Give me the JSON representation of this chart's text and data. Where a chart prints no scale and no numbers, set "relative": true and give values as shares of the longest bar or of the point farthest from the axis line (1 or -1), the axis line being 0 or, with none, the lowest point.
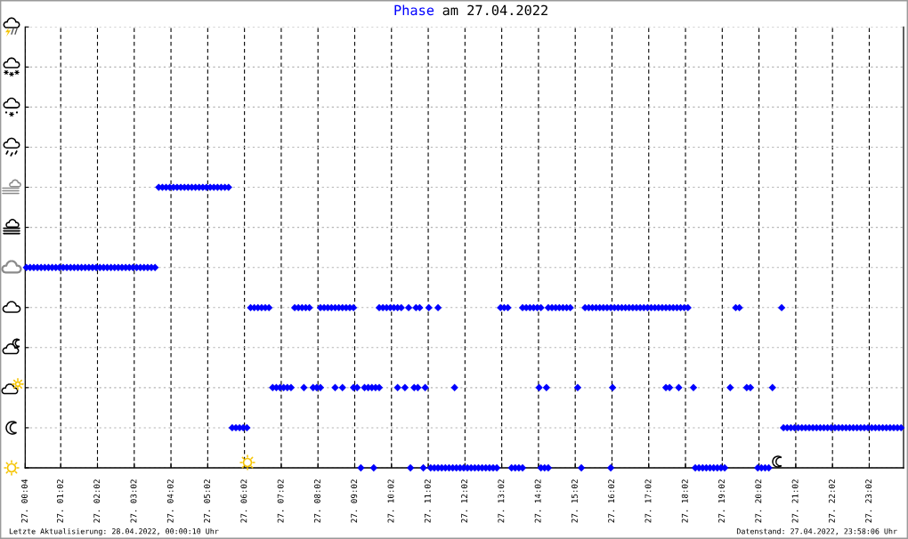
{
  "chart_data": {
    "type": "scatter",
    "title": "Phase am 27.04.2022",
    "annotations": [
      "Letzte Aktualisierung: 28.04.2022, 00:00:10 Uhr",
      "Datenstand: 27.04.2022, 23:58:06 Uhr"
    ],
    "relative": true,
    "marker": "diamond",
    "grid": true,
    "tick_labels": "x",
    "color": "#0000ff",
    "xlim": [
      "2022-04-27T00:04",
      "2022-04-27T23:58"
    ],
    "xticks": [
      {
        "value": "2022-04-27T00:04",
        "label": "27. 00:04"
      },
      {
        "value": "2022-04-27T01:02",
        "label": "27. 01:02"
      },
      {
        "value": "2022-04-27T02:02",
        "label": "27. 02:02"
      },
      {
        "value": "2022-04-27T03:02",
        "label": "27. 03:02"
      },
      {
        "value": "2022-04-27T04:02",
        "label": "27. 04:02"
      },
      {
        "value": "2022-04-27T05:02",
        "label": "27. 05:02"
      },
      {
        "value": "2022-04-27T06:02",
        "label": "27. 06:02"
      },
      {
        "value": "2022-04-27T07:02",
        "label": "27. 07:02"
      },
      {
        "value": "2022-04-27T08:02",
        "label": "27. 08:02"
      },
      {
        "value": "2022-04-27T09:02",
        "label": "27. 09:02"
      },
      {
        "value": "2022-04-27T10:02",
        "label": "27. 10:02"
      },
      {
        "value": "2022-04-27T11:02",
        "label": "27. 11:02"
      },
      {
        "value": "2022-04-27T12:02",
        "label": "27. 12:02"
      },
      {
        "value": "2022-04-27T13:02",
        "label": "27. 13:02"
      },
      {
        "value": "2022-04-27T14:02",
        "label": "27. 14:02"
      },
      {
        "value": "2022-04-27T15:02",
        "label": "27. 15:02"
      },
      {
        "value": "2022-04-27T16:02",
        "label": "27. 16:02"
      },
      {
        "value": "2022-04-27T17:02",
        "label": "27. 17:02"
      },
      {
        "value": "2022-04-27T18:02",
        "label": "27. 18:02"
      },
      {
        "value": "2022-04-27T19:02",
        "label": "27. 19:02"
      },
      {
        "value": "2022-04-27T20:02",
        "label": "27. 20:02"
      },
      {
        "value": "2022-04-27T21:02",
        "label": "27. 21:02"
      },
      {
        "value": "2022-04-27T22:02",
        "label": "27. 22:02"
      },
      {
        "value": "2022-04-27T23:02",
        "label": "27. 23:02"
      }
    ],
    "x": [
      "2022-04-27T00:06",
      "2022-04-27T00:12",
      "2022-04-27T00:18",
      "2022-04-27T00:24",
      "2022-04-27T00:30",
      "2022-04-27T00:36",
      "2022-04-27T00:42",
      "2022-04-27T00:48",
      "2022-04-27T00:54",
      "2022-04-27T01:00",
      "2022-04-27T01:06",
      "2022-04-27T01:12",
      "2022-04-27T01:18",
      "2022-04-27T01:24",
      "2022-04-27T01:30",
      "2022-04-27T01:36",
      "2022-04-27T01:42",
      "2022-04-27T01:48",
      "2022-04-27T01:54",
      "2022-04-27T02:00",
      "2022-04-27T02:06",
      "2022-04-27T02:12",
      "2022-04-27T02:18",
      "2022-04-27T02:24",
      "2022-04-27T02:30",
      "2022-04-27T02:36",
      "2022-04-27T02:42",
      "2022-04-27T02:48",
      "2022-04-27T02:54",
      "2022-04-27T03:00",
      "2022-04-27T03:06",
      "2022-04-27T03:12",
      "2022-04-27T03:18",
      "2022-04-27T03:24",
      "2022-04-27T03:30",
      "2022-04-27T03:36",
      "2022-04-27T03:42",
      "2022-04-27T03:48",
      "2022-04-27T03:54",
      "2022-04-27T04:00",
      "2022-04-27T04:06",
      "2022-04-27T04:12",
      "2022-04-27T04:18",
      "2022-04-27T04:24",
      "2022-04-27T04:30",
      "2022-04-27T04:36",
      "2022-04-27T04:42",
      "2022-04-27T04:48",
      "2022-04-27T04:54",
      "2022-04-27T05:00",
      "2022-04-27T05:06",
      "2022-04-27T05:12",
      "2022-04-27T05:18",
      "2022-04-27T05:24",
      "2022-04-27T05:30",
      "2022-04-27T05:36",
      "2022-04-27T05:42",
      "2022-04-27T05:48",
      "2022-04-27T05:54",
      "2022-04-27T06:00",
      "2022-04-27T06:06",
      "2022-04-27T20:42",
      "2022-04-27T20:48",
      "2022-04-27T20:54",
      "2022-04-27T21:00",
      "2022-04-27T21:06",
      "2022-04-27T21:12",
      "2022-04-27T21:18",
      "2022-04-27T21:24",
      "2022-04-27T21:30",
      "2022-04-27T21:36",
      "2022-04-27T21:42",
      "2022-04-27T21:48",
      "2022-04-27T21:54",
      "2022-04-27T22:00",
      "2022-04-27T22:06",
      "2022-04-27T22:12",
      "2022-04-27T22:18",
      "2022-04-27T22:24",
      "2022-04-27T22:30",
      "2022-04-27T22:36",
      "2022-04-27T22:42",
      "2022-04-27T22:48",
      "2022-04-27T22:54",
      "2022-04-27T23:00",
      "2022-04-27T23:06",
      "2022-04-27T23:12",
      "2022-04-27T23:18",
      "2022-04-27T23:24",
      "2022-04-27T23:30",
      "2022-04-27T23:36",
      "2022-04-27T23:42",
      "2022-04-27T23:48",
      "2022-04-27T23:54",
      "2022-04-27T06:12",
      "2022-04-27T06:18",
      "2022-04-27T06:24",
      "2022-04-27T06:30",
      "2022-04-27T06:36",
      "2022-04-27T06:42",
      "2022-04-27T07:24",
      "2022-04-27T07:30",
      "2022-04-27T07:36",
      "2022-04-27T07:42",
      "2022-04-27T07:48",
      "2022-04-27T08:06",
      "2022-04-27T08:12",
      "2022-04-27T08:18",
      "2022-04-27T08:24",
      "2022-04-27T08:30",
      "2022-04-27T08:36",
      "2022-04-27T08:42",
      "2022-04-27T08:48",
      "2022-04-27T08:54",
      "2022-04-27T09:00",
      "2022-04-27T09:42",
      "2022-04-27T09:48",
      "2022-04-27T09:54",
      "2022-04-27T10:00",
      "2022-04-27T10:06",
      "2022-04-27T10:12",
      "2022-04-27T10:18",
      "2022-04-27T10:30",
      "2022-04-27T10:42",
      "2022-04-27T10:48",
      "2022-04-27T11:03",
      "2022-04-27T11:18",
      "2022-04-27T13:00",
      "2022-04-27T13:06",
      "2022-04-27T13:12",
      "2022-04-27T13:36",
      "2022-04-27T13:42",
      "2022-04-27T13:48",
      "2022-04-27T13:54",
      "2022-04-27T14:00",
      "2022-04-27T14:06",
      "2022-04-27T14:18",
      "2022-04-27T14:24",
      "2022-04-27T14:30",
      "2022-04-27T14:36",
      "2022-04-27T14:42",
      "2022-04-27T14:48",
      "2022-04-27T14:54",
      "2022-04-27T15:18",
      "2022-04-27T15:24",
      "2022-04-27T15:30",
      "2022-04-27T15:36",
      "2022-04-27T15:42",
      "2022-04-27T15:48",
      "2022-04-27T15:54",
      "2022-04-27T16:00",
      "2022-04-27T16:06",
      "2022-04-27T16:12",
      "2022-04-27T16:18",
      "2022-04-27T16:24",
      "2022-04-27T16:30",
      "2022-04-27T16:36",
      "2022-04-27T16:42",
      "2022-04-27T16:48",
      "2022-04-27T16:54",
      "2022-04-27T17:00",
      "2022-04-27T17:06",
      "2022-04-27T17:12",
      "2022-04-27T17:18",
      "2022-04-27T17:24",
      "2022-04-27T17:30",
      "2022-04-27T17:36",
      "2022-04-27T17:42",
      "2022-04-27T17:48",
      "2022-04-27T17:54",
      "2022-04-27T18:00",
      "2022-04-27T18:06",
      "2022-04-27T19:24",
      "2022-04-27T19:30",
      "2022-04-27T20:39",
      "2022-04-27T06:48",
      "2022-04-27T06:54",
      "2022-04-27T07:00",
      "2022-04-27T07:06",
      "2022-04-27T07:12",
      "2022-04-27T07:18",
      "2022-04-27T07:39",
      "2022-04-27T07:54",
      "2022-04-27T08:00",
      "2022-04-27T08:06",
      "2022-04-27T08:30",
      "2022-04-27T08:42",
      "2022-04-27T09:00",
      "2022-04-27T09:06",
      "2022-04-27T09:18",
      "2022-04-27T09:24",
      "2022-04-27T09:30",
      "2022-04-27T09:36",
      "2022-04-27T09:42",
      "2022-04-27T10:12",
      "2022-04-27T10:24",
      "2022-04-27T10:39",
      "2022-04-27T10:45",
      "2022-04-27T10:57",
      "2022-04-27T11:45",
      "2022-04-27T14:03",
      "2022-04-27T14:15",
      "2022-04-27T15:06",
      "2022-04-27T16:03",
      "2022-04-27T17:30",
      "2022-04-27T17:36",
      "2022-04-27T17:51",
      "2022-04-27T18:15",
      "2022-04-27T19:15",
      "2022-04-27T19:42",
      "2022-04-27T19:48",
      "2022-04-27T20:24",
      "2022-04-27T09:12",
      "2022-04-27T09:33",
      "2022-04-27T10:33",
      "2022-04-27T10:54",
      "2022-04-27T11:06",
      "2022-04-27T11:12",
      "2022-04-27T11:18",
      "2022-04-27T11:24",
      "2022-04-27T11:30",
      "2022-04-27T11:36",
      "2022-04-27T11:42",
      "2022-04-27T11:48",
      "2022-04-27T11:54",
      "2022-04-27T12:00",
      "2022-04-27T12:06",
      "2022-04-27T12:12",
      "2022-04-27T12:18",
      "2022-04-27T12:24",
      "2022-04-27T12:30",
      "2022-04-27T12:36",
      "2022-04-27T12:42",
      "2022-04-27T12:48",
      "2022-04-27T12:54",
      "2022-04-27T13:18",
      "2022-04-27T13:24",
      "2022-04-27T13:30",
      "2022-04-27T13:36",
      "2022-04-27T14:06",
      "2022-04-27T14:12",
      "2022-04-27T14:18",
      "2022-04-27T15:12",
      "2022-04-27T16:00",
      "2022-04-27T18:18",
      "2022-04-27T18:24",
      "2022-04-27T18:30",
      "2022-04-27T18:36",
      "2022-04-27T18:42",
      "2022-04-27T18:48",
      "2022-04-27T18:54",
      "2022-04-27T19:00",
      "2022-04-27T19:06",
      "2022-04-27T20:00",
      "2022-04-27T20:06",
      "2022-04-27T20:12",
      "2022-04-27T20:18"
    ],
    "values": [
      0.714,
      0.714,
      0.714,
      0.714,
      0.714,
      0.714,
      0.714,
      0.714,
      0.714,
      0.714,
      0.714,
      0.714,
      0.714,
      0.714,
      0.714,
      0.714,
      0.714,
      0.714,
      0.714,
      0.714,
      0.714,
      0.714,
      0.714,
      0.714,
      0.714,
      0.714,
      0.714,
      0.714,
      0.714,
      0.714,
      0.714,
      0.714,
      0.714,
      0.714,
      0.714,
      0.714,
      1,
      1,
      1,
      1,
      1,
      1,
      1,
      1,
      1,
      1,
      1,
      1,
      1,
      1,
      1,
      1,
      1,
      1,
      1,
      1,
      0.143,
      0.143,
      0.143,
      0.143,
      0.143,
      0.143,
      0.143,
      0.143,
      0.143,
      0.143,
      0.143,
      0.143,
      0.143,
      0.143,
      0.143,
      0.143,
      0.143,
      0.143,
      0.143,
      0.143,
      0.143,
      0.143,
      0.143,
      0.143,
      0.143,
      0.143,
      0.143,
      0.143,
      0.143,
      0.143,
      0.143,
      0.143,
      0.143,
      0.143,
      0.143,
      0.143,
      0.143,
      0.143,
      0.571,
      0.571,
      0.571,
      0.571,
      0.571,
      0.571,
      0.571,
      0.571,
      0.571,
      0.571,
      0.571,
      0.571,
      0.571,
      0.571,
      0.571,
      0.571,
      0.571,
      0.571,
      0.571,
      0.571,
      0.571,
      0.571,
      0.571,
      0.571,
      0.571,
      0.571,
      0.571,
      0.571,
      0.571,
      0.571,
      0.571,
      0.571,
      0.571,
      0.571,
      0.571,
      0.571,
      0.571,
      0.571,
      0.571,
      0.571,
      0.571,
      0.571,
      0.571,
      0.571,
      0.571,
      0.571,
      0.571,
      0.571,
      0.571,
      0.571,
      0.571,
      0.571,
      0.571,
      0.571,
      0.571,
      0.571,
      0.571,
      0.571,
      0.571,
      0.571,
      0.571,
      0.571,
      0.571,
      0.571,
      0.571,
      0.571,
      0.571,
      0.571,
      0.571,
      0.571,
      0.571,
      0.571,
      0.571,
      0.571,
      0.571,
      0.571,
      0.571,
      0.571,
      0.571,
      0.571,
      0.571,
      0.286,
      0.286,
      0.286,
      0.286,
      0.286,
      0.286,
      0.286,
      0.286,
      0.286,
      0.286,
      0.286,
      0.286,
      0.286,
      0.286,
      0.286,
      0.286,
      0.286,
      0.286,
      0.286,
      0.286,
      0.286,
      0.286,
      0.286,
      0.286,
      0.286,
      0.286,
      0.286,
      0.286,
      0.286,
      0.286,
      0.286,
      0.286,
      0.286,
      0.286,
      0.286,
      0.286,
      0.286,
      0,
      0,
      0,
      0,
      0,
      0,
      0,
      0,
      0,
      0,
      0,
      0,
      0,
      0,
      0,
      0,
      0,
      0,
      0,
      0,
      0,
      0,
      0,
      0,
      0,
      0,
      0,
      0,
      0,
      0,
      0,
      0,
      0,
      0,
      0,
      0,
      0,
      0,
      0,
      0,
      0,
      0,
      0,
      0,
      0
    ]
  }
}
